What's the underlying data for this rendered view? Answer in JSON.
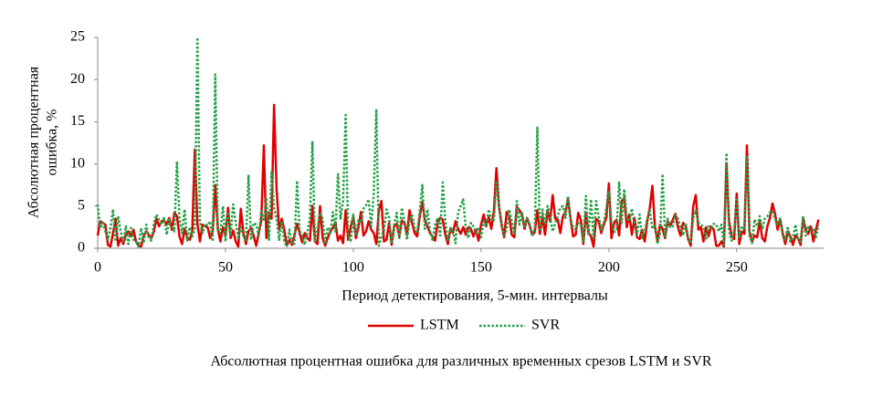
{
  "chart_data": {
    "type": "line",
    "y_label": [
      "Абсолютная процентная",
      "ошибка, %"
    ],
    "x_label": "Период детектирования, 5-мин. интервалы",
    "caption": "Абсолютная процентная ошибка для различных временных срезов LSTM и SVR",
    "xlim": [
      0,
      284
    ],
    "xticks": [
      0,
      50,
      100,
      150,
      200,
      250
    ],
    "ylim": [
      0,
      25
    ],
    "yticks": [
      0,
      5,
      10,
      15,
      20,
      25
    ],
    "legend": "bottom",
    "x": [
      0,
      1,
      2,
      3,
      4,
      5,
      6,
      7,
      8,
      9,
      10,
      11,
      12,
      13,
      14,
      15,
      16,
      17,
      18,
      19,
      20,
      21,
      22,
      23,
      24,
      25,
      26,
      27,
      28,
      29,
      30,
      31,
      32,
      33,
      34,
      35,
      36,
      37,
      38,
      39,
      40,
      41,
      42,
      43,
      44,
      45,
      46,
      47,
      48,
      49,
      50,
      51,
      52,
      53,
      54,
      55,
      56,
      57,
      58,
      59,
      60,
      61,
      62,
      63,
      64,
      65,
      66,
      67,
      68,
      69,
      70,
      71,
      72,
      73,
      74,
      75,
      76,
      77,
      78,
      79,
      80,
      81,
      82,
      83,
      84,
      85,
      86,
      87,
      88,
      89,
      90,
      91,
      92,
      93,
      94,
      95,
      96,
      97,
      98,
      99,
      100,
      101,
      102,
      103,
      104,
      105,
      106,
      107,
      108,
      109,
      110,
      111,
      112,
      113,
      114,
      115,
      116,
      117,
      118,
      119,
      120,
      121,
      122,
      123,
      124,
      125,
      126,
      127,
      128,
      129,
      130,
      131,
      132,
      133,
      134,
      135,
      136,
      137,
      138,
      139,
      140,
      141,
      142,
      143,
      144,
      145,
      146,
      147,
      148,
      149,
      150,
      151,
      152,
      153,
      154,
      155,
      156,
      157,
      158,
      159,
      160,
      161,
      162,
      163,
      164,
      165,
      166,
      167,
      168,
      169,
      170,
      171,
      172,
      173,
      174,
      175,
      176,
      177,
      178,
      179,
      180,
      181,
      182,
      183,
      184,
      185,
      186,
      187,
      188,
      189,
      190,
      191,
      192,
      193,
      194,
      195,
      196,
      197,
      198,
      199,
      200,
      201,
      202,
      203,
      204,
      205,
      206,
      207,
      208,
      209,
      210,
      211,
      212,
      213,
      214,
      215,
      216,
      217,
      218,
      219,
      220,
      221,
      222,
      223,
      224,
      225,
      226,
      227,
      228,
      229,
      230,
      231,
      232,
      233,
      234,
      235,
      236,
      237,
      238,
      239,
      240,
      241,
      242,
      243,
      244,
      245,
      246,
      247,
      248,
      249,
      250,
      251,
      252,
      253,
      254,
      255,
      256,
      257,
      258,
      259,
      260,
      261,
      262,
      263,
      264,
      265,
      266,
      267,
      268,
      269,
      270,
      271,
      272,
      273,
      274,
      275,
      276,
      277,
      278,
      279,
      280,
      281,
      282
    ],
    "series": [
      {
        "name": "LSTM",
        "color": "#e00000",
        "style": "solid",
        "values": [
          1.5,
          3.2,
          3,
          2.8,
          0.4,
          0.2,
          1.8,
          3.5,
          0.3,
          1.2,
          0.5,
          1.6,
          2,
          1.4,
          2.2,
          0.8,
          0.3,
          0.2,
          1.5,
          2,
          1.6,
          1.2,
          2,
          3.5,
          2.6,
          3.2,
          3.3,
          2.8,
          3.6,
          2.2,
          4.2,
          3.8,
          1.4,
          0.5,
          2.3,
          1.2,
          1,
          2,
          11.7,
          3,
          0.8,
          2.8,
          2.6,
          2.5,
          1.2,
          2,
          7.5,
          2.3,
          0.8,
          2.5,
          1.5,
          4.8,
          1.2,
          2.1,
          0.8,
          0.2,
          4.7,
          1.8,
          0.5,
          2,
          2.4,
          1.5,
          0.3,
          1.8,
          3.3,
          12.2,
          1.2,
          4.2,
          3.5,
          17,
          7,
          2.2,
          3.5,
          2.2,
          0.3,
          1,
          0.4,
          1.6,
          2.9,
          1.8,
          0.7,
          1.8,
          1.2,
          0.9,
          5,
          0.8,
          0.5,
          5,
          1.2,
          0.3,
          1.2,
          2,
          2.4,
          3.1,
          0.9,
          1.5,
          0.6,
          4.5,
          1,
          2.5,
          3.8,
          1.2,
          2.5,
          4.3,
          1.5,
          2,
          3.2,
          2.2,
          1.8,
          0.5,
          4.5,
          5.6,
          0.8,
          1,
          3,
          0.4,
          2.6,
          2.9,
          1.4,
          3.3,
          3,
          1.6,
          4.5,
          3,
          1.8,
          1.4,
          3.8,
          5.5,
          3.3,
          2.6,
          1.8,
          1.4,
          0.9,
          3,
          3.6,
          3.4,
          1.6,
          0.5,
          2.3,
          1.8,
          3.2,
          2.3,
          1.7,
          2.5,
          1.6,
          2.5,
          2.3,
          1.4,
          2.2,
          0.9,
          2.8,
          4,
          2.6,
          3.7,
          2.3,
          4.4,
          9.5,
          5,
          2.8,
          1.3,
          4.3,
          3.8,
          1.6,
          1.3,
          4.9,
          4.5,
          4,
          2.3,
          3.6,
          2.7,
          1.6,
          1.9,
          4.5,
          1.7,
          3.8,
          1.6,
          4.5,
          3.2,
          6.3,
          3.5,
          3.4,
          1.8,
          3.8,
          4.3,
          5.8,
          3.5,
          1.4,
          1.6,
          4.2,
          3.4,
          0.5,
          4.2,
          1.9,
          1.4,
          0.2,
          3.5,
          3.2,
          1.8,
          2.8,
          3.6,
          7.7,
          1.2,
          3,
          3.4,
          1.5,
          5.6,
          6,
          2.5,
          4,
          1.6,
          3.6,
          1.3,
          1.1,
          2.2,
          0.8,
          3.2,
          4.8,
          7.4,
          2.6,
          0.8,
          2.8,
          2.3,
          1.2,
          3.2,
          2.6,
          3.4,
          4.1,
          2.5,
          1.5,
          3,
          2.7,
          1.1,
          0.3,
          5,
          6.3,
          2.2,
          2.5,
          0.8,
          2.5,
          1.4,
          2.6,
          2.2,
          0.3,
          0.3,
          0.8,
          0.2,
          10,
          3.2,
          1.5,
          1.1,
          6.5,
          0.5,
          2,
          1.7,
          12.2,
          2,
          0.8,
          1.5,
          1.3,
          3.2,
          1.2,
          0.8,
          2.6,
          3.6,
          5.3,
          4.1,
          2.2,
          3.5,
          1.8,
          0.5,
          2,
          1.4,
          0.4,
          1.5,
          1.2,
          0.4,
          3.6,
          2.2,
          1.7,
          2.6,
          0.8,
          2.2,
          3.4
        ]
      },
      {
        "name": "SVR",
        "color": "#22a045",
        "style": "dotted",
        "values": [
          5.2,
          2.4,
          3,
          2,
          1,
          2.4,
          4.6,
          0.8,
          3.8,
          2,
          0.8,
          2.6,
          0.5,
          2.4,
          1,
          0.8,
          0.2,
          2.4,
          0.6,
          2.8,
          1.2,
          0.9,
          3,
          4,
          3.4,
          2.8,
          3.6,
          1.6,
          3.4,
          2.5,
          2,
          10.3,
          3.5,
          1.8,
          4.6,
          0.9,
          2.5,
          1.4,
          2.2,
          25,
          3.2,
          1.8,
          2.9,
          2.7,
          3.2,
          0.8,
          20.6,
          2,
          1.8,
          5,
          0.8,
          4.3,
          1.5,
          5.2,
          3,
          1.2,
          2.5,
          1.5,
          0.8,
          8.6,
          1,
          3,
          2.8,
          1.5,
          4.4,
          3.4,
          6,
          1,
          9,
          4.8,
          3.5,
          1,
          3.2,
          0.8,
          0.2,
          2.2,
          0.5,
          0.5,
          8,
          2,
          1.6,
          0.4,
          1.8,
          3.5,
          12.7,
          0.7,
          2.4,
          4.2,
          3.5,
          0.5,
          2.5,
          1.6,
          4.3,
          2,
          8.8,
          3.5,
          5.6,
          15.8,
          1.4,
          0.9,
          4,
          1.5,
          3.4,
          3,
          4.7,
          5.1,
          5.8,
          2.6,
          6.4,
          16.5,
          0.3,
          1.4,
          2.1,
          4.6,
          3.6,
          0.6,
          2.8,
          4.2,
          1.2,
          4.8,
          3.2,
          1,
          3.3,
          4,
          2.4,
          1.8,
          4.4,
          7.5,
          2.3,
          4.6,
          2,
          1,
          2.8,
          3.6,
          1.5,
          7.8,
          3.2,
          0.8,
          2.4,
          2.2,
          0.6,
          4.2,
          5,
          5.8,
          2.4,
          1.2,
          3,
          2.6,
          1.8,
          2.5,
          1.3,
          3.2,
          2.6,
          4.6,
          3.5,
          3.2,
          8,
          5,
          3,
          1.3,
          2.3,
          4.6,
          3.2,
          1.8,
          5.6,
          2.8,
          4.2,
          2.6,
          3.5,
          2.8,
          1.4,
          2.3,
          14.3,
          2,
          4.6,
          2.8,
          5,
          3.8,
          2,
          3,
          3.8,
          4.8,
          5,
          3.6,
          6.2,
          3.4,
          2.5,
          2.2,
          3,
          2.8,
          0.8,
          6.2,
          1.5,
          5.8,
          1.2,
          5.6,
          3.8,
          2.2,
          3,
          4.8,
          6.8,
          3.2,
          1.9,
          2.2,
          7.8,
          3,
          7,
          3.5,
          3.2,
          4.7,
          2.8,
          1.6,
          4,
          1.2,
          2,
          3.5,
          4.5,
          2.3,
          2.8,
          0.5,
          1.7,
          8.8,
          1.4,
          3.5,
          2.5,
          2.6,
          4,
          3.5,
          2.4,
          1.5,
          3,
          1.2,
          0.6,
          3.6,
          4.5,
          3,
          2.8,
          2.5,
          1,
          2.6,
          2.4,
          2.9,
          2.8,
          2,
          2.8,
          0.4,
          11.3,
          2.1,
          0.9,
          2,
          6,
          1.2,
          2.6,
          2.2,
          11,
          1.5,
          0.6,
          3.4,
          2.6,
          3.8,
          2.2,
          3.5,
          3.8,
          4.2,
          4.4,
          3.5,
          2.8,
          3.5,
          1.5,
          1,
          2.6,
          0.8,
          1.2,
          2.8,
          1,
          0.8,
          3.8,
          1.5,
          2.7,
          2,
          2.2,
          1.3,
          2.8
        ]
      }
    ]
  }
}
